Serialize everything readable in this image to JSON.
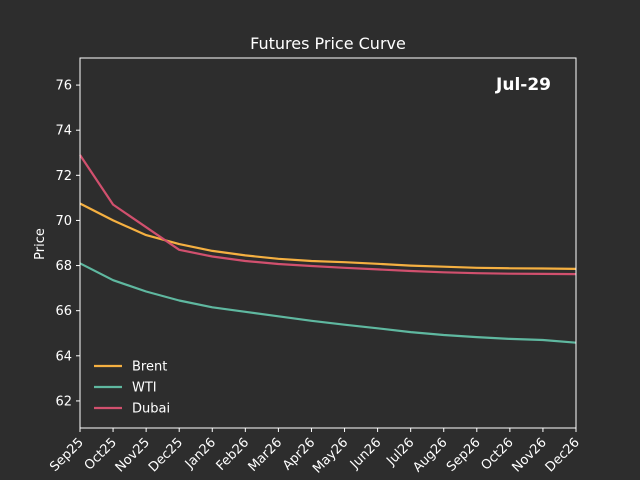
{
  "chart_data": {
    "type": "line",
    "title": "Futures Price Curve",
    "annotation": "Jul-29",
    "xlabel": "",
    "ylabel": "Price",
    "ylim": [
      60.8,
      77.2
    ],
    "yticks": [
      62,
      64,
      66,
      68,
      70,
      72,
      74,
      76
    ],
    "categories": [
      "Sep25",
      "Oct25",
      "Nov25",
      "Dec25",
      "Jan26",
      "Feb26",
      "Mar26",
      "Apr26",
      "May26",
      "Jun26",
      "Jul26",
      "Aug26",
      "Sep26",
      "Oct26",
      "Nov26",
      "Dec26"
    ],
    "grid": false,
    "legend_position": "lower-left",
    "series": [
      {
        "name": "Brent",
        "color": "#f5b041",
        "values": [
          70.75,
          70.0,
          69.35,
          68.95,
          68.65,
          68.45,
          68.3,
          68.2,
          68.15,
          68.08,
          68.0,
          67.95,
          67.9,
          67.88,
          67.87,
          67.85
        ]
      },
      {
        "name": "WTI",
        "color": "#5fb8a0",
        "values": [
          68.1,
          67.35,
          66.85,
          66.45,
          66.15,
          65.95,
          65.75,
          65.55,
          65.38,
          65.22,
          65.05,
          64.92,
          64.83,
          64.75,
          64.7,
          64.58
        ]
      },
      {
        "name": "Dubai",
        "color": "#d1506e",
        "values": [
          72.9,
          70.7,
          69.7,
          68.7,
          68.4,
          68.2,
          68.07,
          67.98,
          67.9,
          67.83,
          67.76,
          67.7,
          67.66,
          67.64,
          67.63,
          67.62
        ]
      }
    ]
  }
}
